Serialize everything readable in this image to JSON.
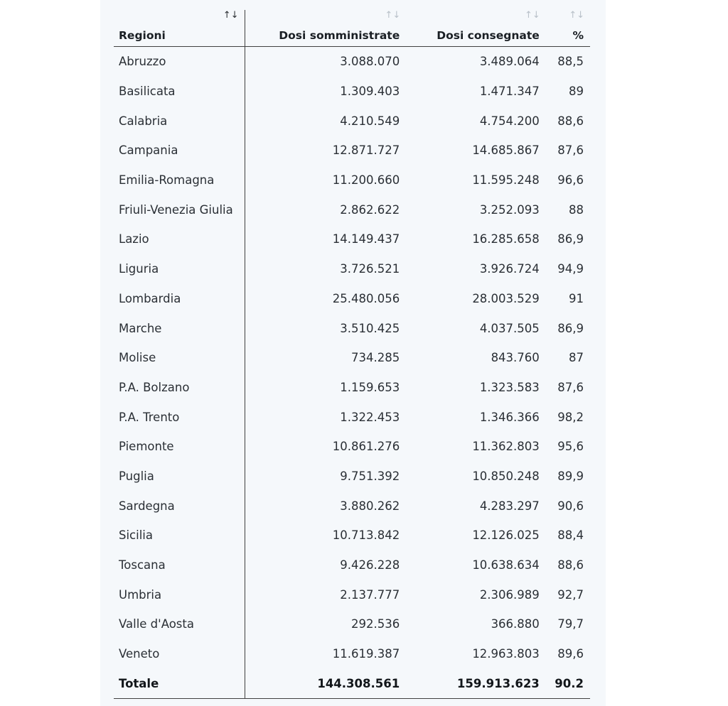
{
  "table": {
    "headers": [
      "Regioni",
      "Dosi somministrate",
      "Dosi consegnate",
      "%"
    ],
    "sort_icon": "↑↓",
    "rows": [
      [
        "Abruzzo",
        "3.088.070",
        "3.489.064",
        "88,5"
      ],
      [
        "Basilicata",
        "1.309.403",
        "1.471.347",
        "89"
      ],
      [
        "Calabria",
        "4.210.549",
        "4.754.200",
        "88,6"
      ],
      [
        "Campania",
        "12.871.727",
        "14.685.867",
        "87,6"
      ],
      [
        "Emilia-Romagna",
        "11.200.660",
        "11.595.248",
        "96,6"
      ],
      [
        "Friuli-Venezia Giulia",
        "2.862.622",
        "3.252.093",
        "88"
      ],
      [
        "Lazio",
        "14.149.437",
        "16.285.658",
        "86,9"
      ],
      [
        "Liguria",
        "3.726.521",
        "3.926.724",
        "94,9"
      ],
      [
        "Lombardia",
        "25.480.056",
        "28.003.529",
        "91"
      ],
      [
        "Marche",
        "3.510.425",
        "4.037.505",
        "86,9"
      ],
      [
        "Molise",
        "734.285",
        "843.760",
        "87"
      ],
      [
        "P.A. Bolzano",
        "1.159.653",
        "1.323.583",
        "87,6"
      ],
      [
        "P.A. Trento",
        "1.322.453",
        "1.346.366",
        "98,2"
      ],
      [
        "Piemonte",
        "10.861.276",
        "11.362.803",
        "95,6"
      ],
      [
        "Puglia",
        "9.751.392",
        "10.850.248",
        "89,9"
      ],
      [
        "Sardegna",
        "3.880.262",
        "4.283.297",
        "90,6"
      ],
      [
        "Sicilia",
        "10.713.842",
        "12.126.025",
        "88,4"
      ],
      [
        "Toscana",
        "9.426.228",
        "10.638.634",
        "88,6"
      ],
      [
        "Umbria",
        "2.137.777",
        "2.306.989",
        "92,7"
      ],
      [
        "Valle d'Aosta",
        "292.536",
        "366.880",
        "79,7"
      ],
      [
        "Veneto",
        "11.619.387",
        "12.963.803",
        "89,6"
      ]
    ],
    "total": [
      "Totale",
      "144.308.561",
      "159.913.623",
      "90.2"
    ]
  }
}
